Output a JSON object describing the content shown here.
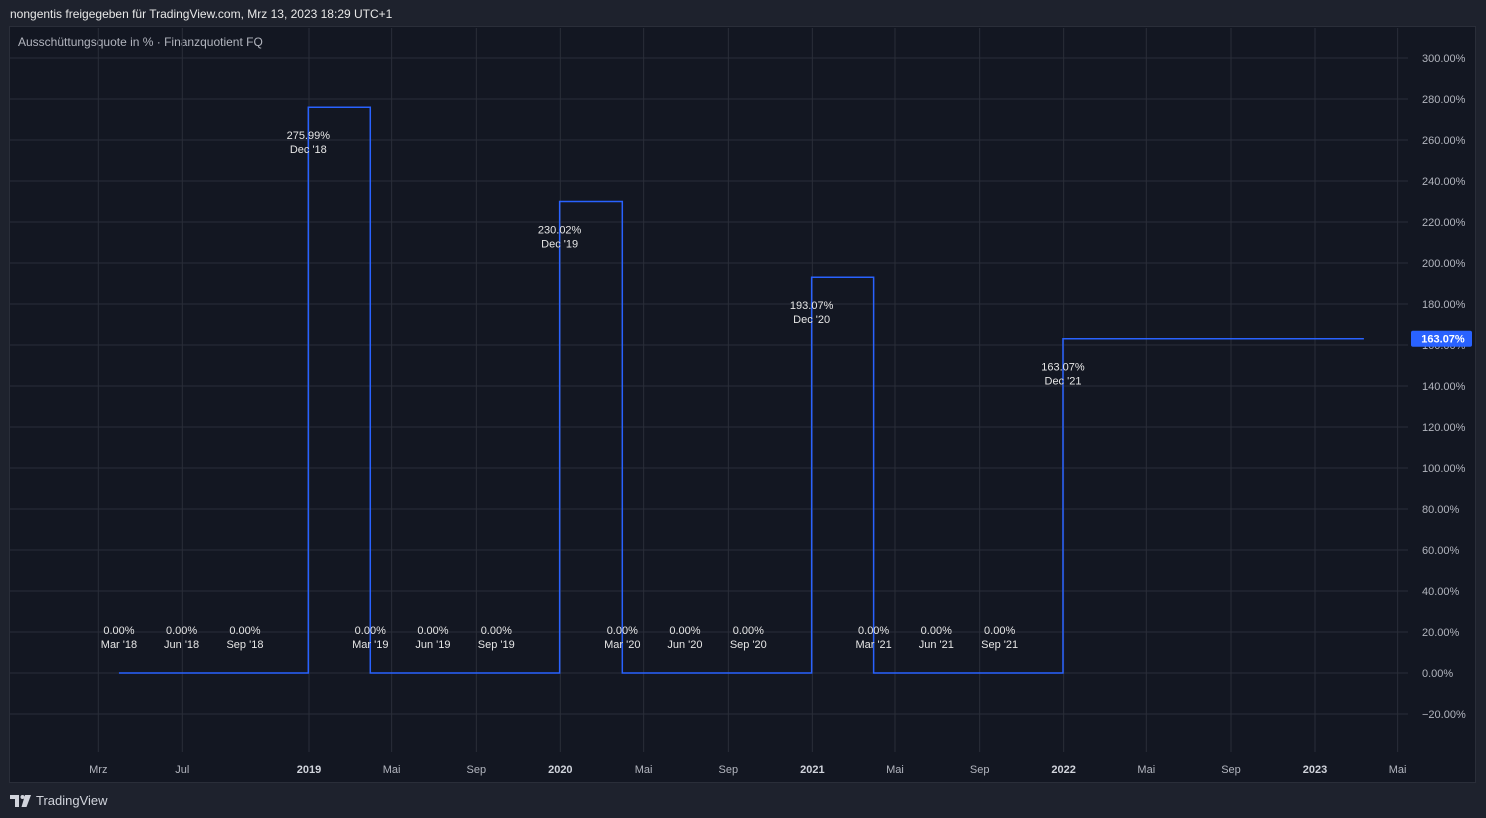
{
  "header": {
    "text": "nongentis freigegeben für TradingView.com, Mrz 13, 2023 18:29 UTC+1"
  },
  "indicator": {
    "title": "Ausschüttungsquote in % · Finanzquotient FQ"
  },
  "footer": {
    "brand": "TradingView"
  },
  "colors": {
    "line": "#2962ff",
    "grid": "#2a2e39",
    "background": "#131722",
    "badge": "#2962ff"
  },
  "chart_data": {
    "type": "line",
    "step": true,
    "ylim": [
      -20,
      300
    ],
    "y_ticks": [
      -20,
      0,
      20,
      40,
      60,
      80,
      100,
      120,
      140,
      160,
      180,
      200,
      220,
      240,
      260,
      280,
      300
    ],
    "y_tick_labels": [
      "−20.00%",
      "0.00%",
      "20.00%",
      "40.00%",
      "60.00%",
      "80.00%",
      "100.00%",
      "120.00%",
      "140.00%",
      "160.00%",
      "180.00%",
      "200.00%",
      "220.00%",
      "240.00%",
      "260.00%",
      "280.00%",
      "300.00%"
    ],
    "x_axis_labels": [
      {
        "t": "2018-03-01",
        "label": "Mrz",
        "major": false
      },
      {
        "t": "2018-07-01",
        "label": "Jul",
        "major": false
      },
      {
        "t": "2019-01-01",
        "label": "2019",
        "major": true
      },
      {
        "t": "2019-05-01",
        "label": "Mai",
        "major": false
      },
      {
        "t": "2019-09-01",
        "label": "Sep",
        "major": false
      },
      {
        "t": "2020-01-01",
        "label": "2020",
        "major": true
      },
      {
        "t": "2020-05-01",
        "label": "Mai",
        "major": false
      },
      {
        "t": "2020-09-01",
        "label": "Sep",
        "major": false
      },
      {
        "t": "2021-01-01",
        "label": "2021",
        "major": true
      },
      {
        "t": "2021-05-01",
        "label": "Mai",
        "major": false
      },
      {
        "t": "2021-09-01",
        "label": "Sep",
        "major": false
      },
      {
        "t": "2022-01-01",
        "label": "2022",
        "major": true
      },
      {
        "t": "2022-05-01",
        "label": "Mai",
        "major": false
      },
      {
        "t": "2022-09-01",
        "label": "Sep",
        "major": false
      },
      {
        "t": "2023-01-01",
        "label": "2023",
        "major": true
      },
      {
        "t": "2023-05-01",
        "label": "Mai",
        "major": false
      }
    ],
    "series": [
      {
        "points": [
          {
            "t": "2018-03-31",
            "value": 0.0,
            "value_label": "0.00%",
            "period_label": "Mar '18"
          },
          {
            "t": "2018-06-30",
            "value": 0.0,
            "value_label": "0.00%",
            "period_label": "Jun '18"
          },
          {
            "t": "2018-09-30",
            "value": 0.0,
            "value_label": "0.00%",
            "period_label": "Sep '18"
          },
          {
            "t": "2018-12-31",
            "value": 275.99,
            "value_label": "275.99%",
            "period_label": "Dec '18"
          },
          {
            "t": "2019-03-31",
            "value": 0.0,
            "value_label": "0.00%",
            "period_label": "Mar '19"
          },
          {
            "t": "2019-06-30",
            "value": 0.0,
            "value_label": "0.00%",
            "period_label": "Jun '19"
          },
          {
            "t": "2019-09-30",
            "value": 0.0,
            "value_label": "0.00%",
            "period_label": "Sep '19"
          },
          {
            "t": "2019-12-31",
            "value": 230.02,
            "value_label": "230.02%",
            "period_label": "Dec '19"
          },
          {
            "t": "2020-03-31",
            "value": 0.0,
            "value_label": "0.00%",
            "period_label": "Mar '20"
          },
          {
            "t": "2020-06-30",
            "value": 0.0,
            "value_label": "0.00%",
            "period_label": "Jun '20"
          },
          {
            "t": "2020-09-30",
            "value": 0.0,
            "value_label": "0.00%",
            "period_label": "Sep '20"
          },
          {
            "t": "2020-12-31",
            "value": 193.07,
            "value_label": "193.07%",
            "period_label": "Dec '20"
          },
          {
            "t": "2021-03-31",
            "value": 0.0,
            "value_label": "0.00%",
            "period_label": "Mar '21"
          },
          {
            "t": "2021-06-30",
            "value": 0.0,
            "value_label": "0.00%",
            "period_label": "Jun '21"
          },
          {
            "t": "2021-09-30",
            "value": 0.0,
            "value_label": "0.00%",
            "period_label": "Sep '21"
          },
          {
            "t": "2021-12-31",
            "value": 163.07,
            "value_label": "163.07%",
            "period_label": "Dec '21"
          }
        ],
        "end_t": "2023-03-13"
      }
    ],
    "last_value": 163.07,
    "last_value_label": "163.07%"
  }
}
